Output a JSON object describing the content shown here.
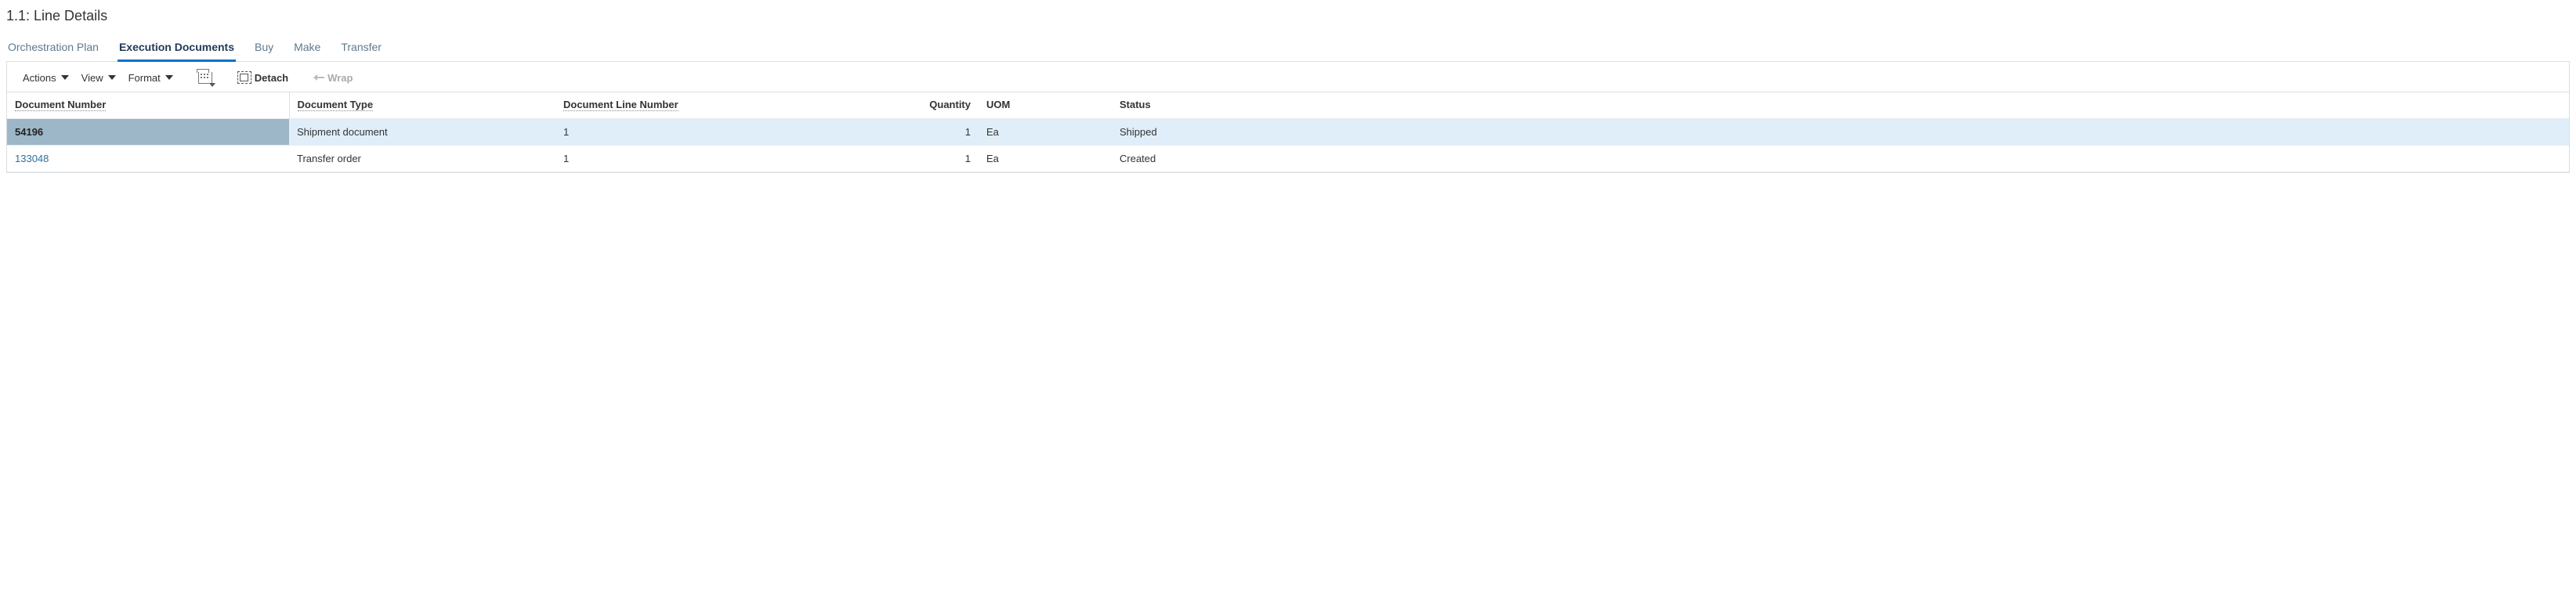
{
  "title": "1.1: Line Details",
  "tabs": [
    {
      "label": "Orchestration Plan",
      "active": false
    },
    {
      "label": "Execution Documents",
      "active": true
    },
    {
      "label": "Buy",
      "active": false
    },
    {
      "label": "Make",
      "active": false
    },
    {
      "label": "Transfer",
      "active": false
    }
  ],
  "toolbar": {
    "actions": "Actions",
    "view": "View",
    "format": "Format",
    "detach": "Detach",
    "wrap": "Wrap"
  },
  "columns": {
    "doc_number": "Document Number",
    "doc_type": "Document Type",
    "doc_line": "Document Line Number",
    "quantity": "Quantity",
    "uom": "UOM",
    "status": "Status"
  },
  "rows": [
    {
      "doc_number": "54196",
      "doc_type": "Shipment document",
      "doc_line": "1",
      "quantity": "1",
      "uom": "Ea",
      "status": "Shipped",
      "selected": true
    },
    {
      "doc_number": "133048",
      "doc_type": "Transfer order",
      "doc_line": "1",
      "quantity": "1",
      "uom": "Ea",
      "status": "Created",
      "selected": false
    }
  ],
  "colors": {
    "selected_row_bg": "#e0eef9",
    "selected_cell_bg": "#9db6c8",
    "active_tab_border": "#0572ce",
    "border": "#d9dfe3",
    "link": "#2f6f9f"
  }
}
